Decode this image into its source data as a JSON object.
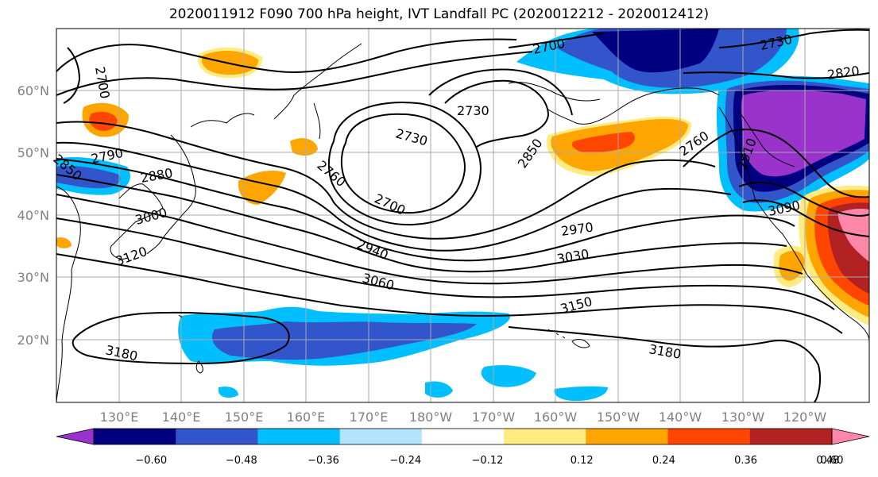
{
  "title": "2020011912 F090 700 hPa height, IVT Landfall PC (2020012212 - 2020012412)",
  "lon_ticks": [
    "130°E",
    "140°E",
    "150°E",
    "160°E",
    "170°E",
    "180°W",
    "170°W",
    "160°W",
    "150°W",
    "140°W",
    "130°W",
    "120°W"
  ],
  "lat_ticks": [
    "60°N",
    "50°N",
    "40°N",
    "30°N",
    "20°N"
  ],
  "contour_labels": [
    "2700",
    "2700",
    "2730",
    "2730",
    "2820",
    "2790",
    "2850",
    "2880",
    "2760",
    "2700",
    "2730",
    "2850",
    "2760",
    "3000",
    "2970",
    "3120",
    "2940",
    "3030",
    "3060",
    "3150",
    "3180",
    "3180",
    "3090",
    "2910"
  ],
  "colorbar": {
    "ticks": [
      "−0.60",
      "−0.48",
      "−0.36",
      "−0.24",
      "−0.12",
      "0.12",
      "0.24",
      "0.36",
      "0.48",
      "0.60"
    ],
    "colors": [
      "#9933cc",
      "#000080",
      "#3355cc",
      "#00bfff",
      "#b3e3ff",
      "#ffffff",
      "#ffeb80",
      "#ffa500",
      "#ff4500",
      "#b22222",
      "#ff88aa"
    ]
  },
  "shading": {
    "neg_strong": "#9933cc",
    "neg_dark": "#000080",
    "neg_med": "#3355cc",
    "neg_light": "#00bfff",
    "neg_pale": "#b3e3ff",
    "pos_pale": "#ffeb80",
    "pos_med": "#ffa500",
    "pos_strong": "#ff4500",
    "pos_dark": "#b22222",
    "pos_max": "#ff88aa"
  }
}
